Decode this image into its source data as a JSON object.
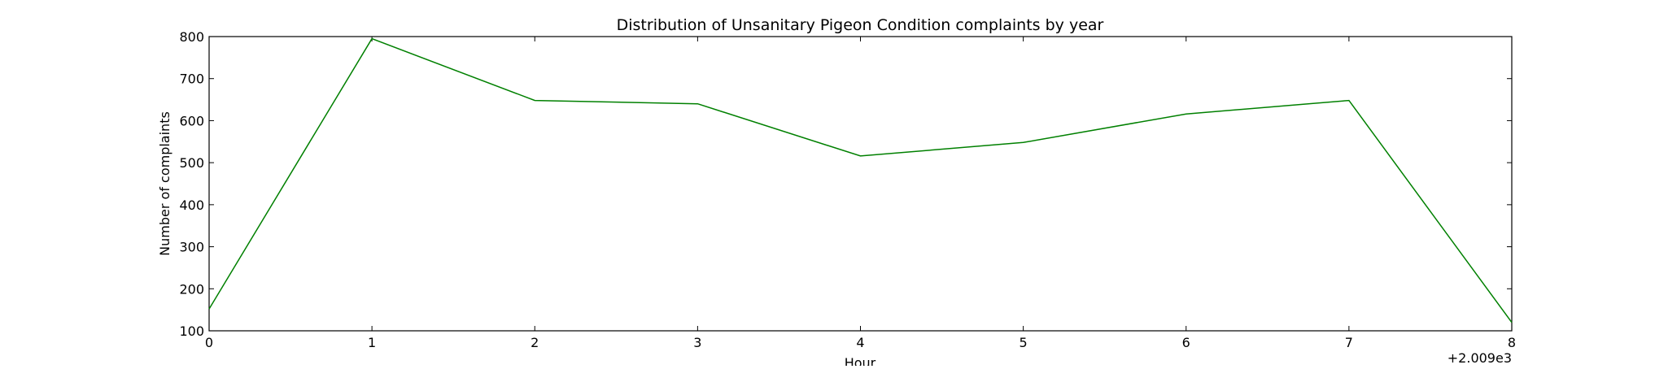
{
  "chart_data": {
    "type": "line",
    "title": "Distribution of  Unsanitary Pigeon Condition complaints by year",
    "xlabel": "Hour",
    "ylabel": "Number of complaints",
    "x_offset_label": "+2.009e3",
    "x_ticks": [
      "0",
      "1",
      "2",
      "3",
      "4",
      "5",
      "6",
      "7",
      "8"
    ],
    "y_ticks": [
      "100",
      "200",
      "300",
      "400",
      "500",
      "600",
      "700",
      "800"
    ],
    "xlim": [
      0,
      8
    ],
    "ylim": [
      100,
      800
    ],
    "grid": false,
    "series": [
      {
        "color": "#008000",
        "x": [
          0,
          1,
          2,
          3,
          4,
          5,
          6,
          7,
          8
        ],
        "y": [
          152,
          795,
          648,
          640,
          516,
          548,
          616,
          648,
          120
        ]
      }
    ]
  }
}
